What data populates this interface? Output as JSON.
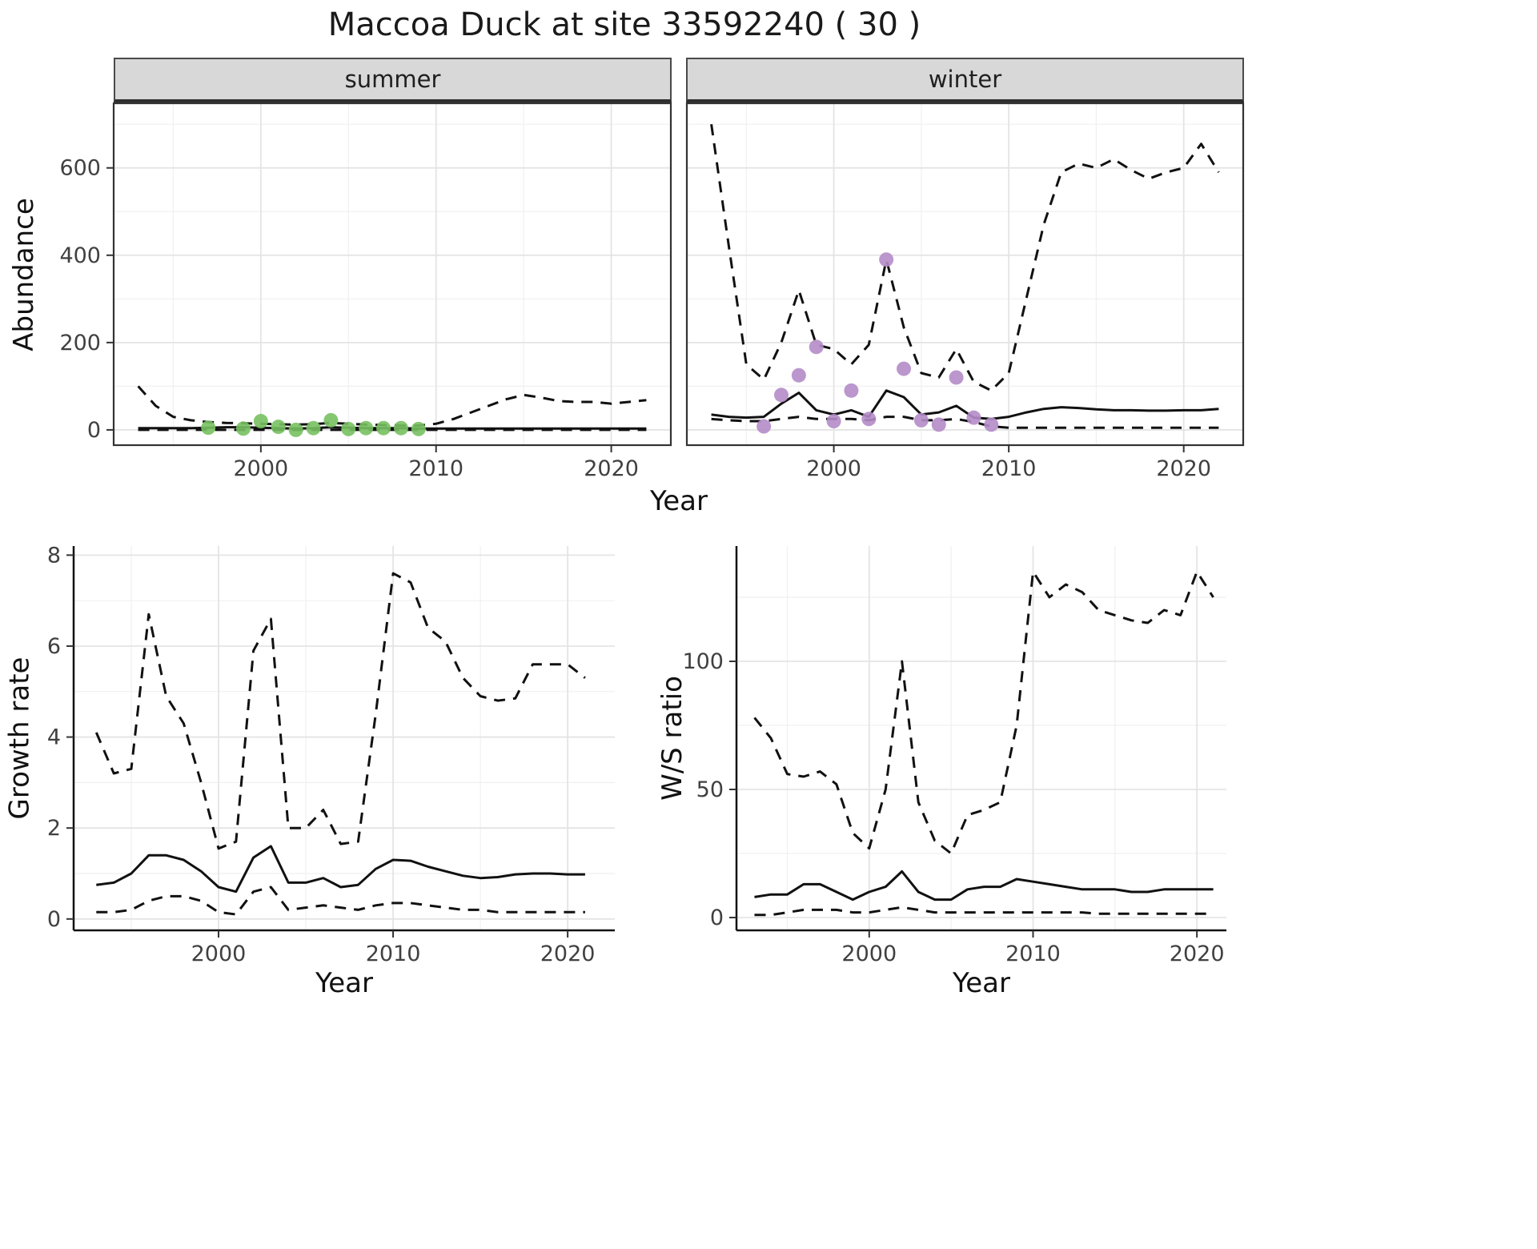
{
  "title": "Maccoa Duck at site 33592240 ( 30 )",
  "chart_data": [
    {
      "id": "abundance-summer",
      "type": "line",
      "facet": "summer",
      "xlabel": "Year",
      "ylabel": "Abundance",
      "x": [
        1993,
        1994,
        1995,
        1996,
        1997,
        1998,
        1999,
        2000,
        2001,
        2002,
        2003,
        2004,
        2005,
        2006,
        2007,
        2008,
        2009,
        2010,
        2011,
        2012,
        2013,
        2014,
        2015,
        2016,
        2017,
        2018,
        2019,
        2020,
        2021,
        2022
      ],
      "xlim": [
        1991.6,
        2023.4
      ],
      "ylim": [
        -35,
        748
      ],
      "xticks": [
        2000,
        2010,
        2020
      ],
      "xminor": [
        1995,
        2005,
        2015
      ],
      "yticks": [
        0,
        200,
        400,
        600
      ],
      "yminor": [
        100,
        300,
        500,
        700
      ],
      "line_color": "#111111",
      "series": [
        {
          "name": "median",
          "style": "solid",
          "values": [
            4,
            4,
            4,
            4,
            5,
            6,
            6,
            5,
            4,
            3,
            4,
            6,
            5,
            4,
            4,
            4,
            3,
            3,
            3,
            3,
            3,
            3,
            3,
            3,
            3,
            3,
            3,
            3,
            3,
            3
          ]
        },
        {
          "name": "upper_ci",
          "style": "dashed",
          "values": [
            100,
            55,
            30,
            22,
            18,
            16,
            15,
            14,
            13,
            12,
            13,
            16,
            14,
            12,
            11,
            10,
            10,
            14,
            25,
            40,
            55,
            70,
            80,
            74,
            66,
            64,
            64,
            60,
            64,
            68
          ]
        },
        {
          "name": "lower_ci",
          "style": "dashed",
          "values": [
            0,
            0,
            0,
            0,
            0,
            0,
            0,
            0,
            0,
            0,
            0,
            0,
            0,
            0,
            0,
            0,
            0,
            0,
            0,
            0,
            0,
            0,
            0,
            0,
            0,
            0,
            0,
            0,
            0,
            0
          ]
        }
      ],
      "points": {
        "name": "observed-counts",
        "color": "#78c161",
        "x": [
          1997,
          1999,
          2000,
          2001,
          2002,
          2003,
          2004,
          2005,
          2006,
          2007,
          2008,
          2009
        ],
        "y": [
          5,
          3,
          20,
          7,
          0,
          4,
          22,
          2,
          4,
          4,
          4,
          2
        ]
      }
    },
    {
      "id": "abundance-winter",
      "type": "line",
      "facet": "winter",
      "xlabel": "Year",
      "ylabel": "",
      "x": [
        1993,
        1994,
        1995,
        1996,
        1997,
        1998,
        1999,
        2000,
        2001,
        2002,
        2003,
        2004,
        2005,
        2006,
        2007,
        2008,
        2009,
        2010,
        2011,
        2012,
        2013,
        2014,
        2015,
        2016,
        2017,
        2018,
        2019,
        2020,
        2021,
        2022
      ],
      "xlim": [
        1991.6,
        2023.4
      ],
      "ylim": [
        -35,
        748
      ],
      "xticks": [
        2000,
        2010,
        2020
      ],
      "xminor": [
        1995,
        2005,
        2015
      ],
      "yticks": [
        0,
        200,
        400,
        600
      ],
      "yminor": [
        100,
        300,
        500,
        700
      ],
      "line_color": "#111111",
      "series": [
        {
          "name": "median",
          "style": "solid",
          "values": [
            35,
            30,
            28,
            30,
            60,
            85,
            45,
            35,
            45,
            30,
            90,
            75,
            35,
            40,
            55,
            28,
            25,
            30,
            40,
            48,
            52,
            50,
            47,
            45,
            45,
            44,
            44,
            45,
            45,
            48
          ]
        },
        {
          "name": "upper_ci",
          "style": "dashed",
          "values": [
            700,
            420,
            150,
            115,
            200,
            320,
            195,
            185,
            150,
            195,
            390,
            235,
            130,
            120,
            185,
            110,
            90,
            130,
            300,
            470,
            590,
            610,
            600,
            620,
            595,
            575,
            590,
            600,
            655,
            590
          ]
        },
        {
          "name": "lower_ci",
          "style": "dashed",
          "values": [
            25,
            22,
            20,
            20,
            25,
            30,
            25,
            25,
            25,
            22,
            30,
            30,
            22,
            22,
            25,
            18,
            8,
            5,
            5,
            5,
            5,
            5,
            5,
            5,
            5,
            5,
            5,
            5,
            5,
            5
          ]
        }
      ],
      "points": {
        "name": "observed-counts",
        "color": "#b48cc8",
        "x": [
          1996,
          1997,
          1998,
          1999,
          2000,
          2001,
          2002,
          2003,
          2004,
          2005,
          2006,
          2007,
          2008,
          2009
        ],
        "y": [
          8,
          80,
          125,
          190,
          20,
          90,
          25,
          390,
          140,
          22,
          12,
          120,
          28,
          12
        ]
      }
    },
    {
      "id": "growth-rate",
      "type": "line",
      "facet": "",
      "xlabel": "Year",
      "ylabel": "Growth rate",
      "x": [
        1993,
        1994,
        1995,
        1996,
        1997,
        1998,
        1999,
        2000,
        2001,
        2002,
        2003,
        2004,
        2005,
        2006,
        2007,
        2008,
        2009,
        2010,
        2011,
        2012,
        2013,
        2014,
        2015,
        2016,
        2017,
        2018,
        2019,
        2020,
        2021
      ],
      "xlim": [
        1991.7,
        2022.7
      ],
      "ylim": [
        -0.25,
        8.2
      ],
      "xticks": [
        2000,
        2010,
        2020
      ],
      "xminor": [
        1995,
        2005,
        2015
      ],
      "yticks": [
        0,
        2,
        4,
        6,
        8
      ],
      "yminor": [
        1,
        3,
        5,
        7
      ],
      "line_color": "#111111",
      "series": [
        {
          "name": "median",
          "style": "solid",
          "values": [
            0.75,
            0.8,
            1.0,
            1.4,
            1.4,
            1.3,
            1.05,
            0.7,
            0.6,
            1.35,
            1.6,
            0.8,
            0.8,
            0.9,
            0.7,
            0.75,
            1.1,
            1.3,
            1.28,
            1.15,
            1.05,
            0.95,
            0.9,
            0.92,
            0.98,
            1.0,
            1.0,
            0.98,
            0.98
          ]
        },
        {
          "name": "upper_ci",
          "style": "dashed",
          "values": [
            4.1,
            3.2,
            3.3,
            6.7,
            4.9,
            4.3,
            3.0,
            1.55,
            1.7,
            5.9,
            6.6,
            2.0,
            2.0,
            2.4,
            1.65,
            1.7,
            4.5,
            7.6,
            7.4,
            6.4,
            6.1,
            5.3,
            4.9,
            4.8,
            4.85,
            5.6,
            5.6,
            5.6,
            5.3
          ]
        },
        {
          "name": "lower_ci",
          "style": "dashed",
          "values": [
            0.15,
            0.15,
            0.2,
            0.4,
            0.5,
            0.5,
            0.4,
            0.15,
            0.1,
            0.6,
            0.7,
            0.2,
            0.25,
            0.3,
            0.25,
            0.2,
            0.3,
            0.35,
            0.35,
            0.3,
            0.25,
            0.2,
            0.2,
            0.15,
            0.15,
            0.15,
            0.15,
            0.15,
            0.15
          ]
        }
      ],
      "points": null
    },
    {
      "id": "ws-ratio",
      "type": "line",
      "facet": "",
      "xlabel": "Year",
      "ylabel": "W/S ratio",
      "x": [
        1993,
        1994,
        1995,
        1996,
        1997,
        1998,
        1999,
        2000,
        2001,
        2002,
        2003,
        2004,
        2005,
        2006,
        2007,
        2008,
        2009,
        2010,
        2011,
        2012,
        2013,
        2014,
        2015,
        2016,
        2017,
        2018,
        2019,
        2020,
        2021
      ],
      "xlim": [
        1991.9,
        2021.8
      ],
      "ylim": [
        -5,
        145
      ],
      "xticks": [
        2000,
        2010,
        2020
      ],
      "xminor": [
        1995,
        2005,
        2015
      ],
      "yticks": [
        0,
        50,
        100
      ],
      "yminor": [
        25,
        75,
        125
      ],
      "line_color": "#111111",
      "series": [
        {
          "name": "median",
          "style": "solid",
          "values": [
            8,
            9,
            9,
            13,
            13,
            10,
            7,
            10,
            12,
            18,
            10,
            7,
            7,
            11,
            12,
            12,
            15,
            14,
            13,
            12,
            11,
            11,
            11,
            10,
            10,
            11,
            11,
            11,
            11
          ]
        },
        {
          "name": "upper_ci",
          "style": "dashed",
          "values": [
            78,
            70,
            56,
            55,
            57,
            52,
            33,
            27,
            50,
            100,
            45,
            30,
            25,
            40,
            42,
            45,
            75,
            135,
            125,
            130,
            127,
            120,
            118,
            116,
            115,
            120,
            118,
            135,
            125
          ]
        },
        {
          "name": "lower_ci",
          "style": "dashed",
          "values": [
            1,
            1,
            2,
            3,
            3,
            3,
            2,
            2,
            3,
            4,
            3,
            2,
            2,
            2,
            2,
            2,
            2,
            2,
            2,
            2,
            2,
            1.5,
            1.5,
            1.5,
            1.5,
            1.5,
            1.5,
            1.5,
            1.5
          ]
        }
      ],
      "points": null
    }
  ]
}
